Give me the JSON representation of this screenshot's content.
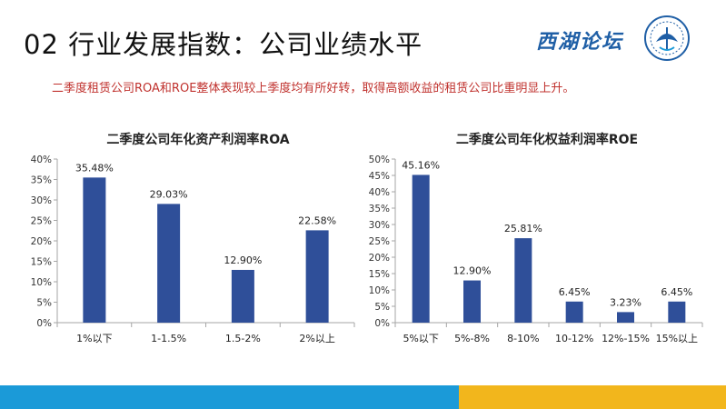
{
  "header": {
    "title": "02 行业发展指数：公司业绩水平",
    "logo_text": "西湖论坛",
    "subtitle": "二季度租赁公司ROA和ROE整体表现较上季度均有所好转，取得高额收益的租赁公司比重明显上升。"
  },
  "colors": {
    "bar": "#2f4f99",
    "footer_blue": "#1b9ad8",
    "footer_yellow": "#f2b61c",
    "subtitle": "#c0322e"
  },
  "chart_data": [
    {
      "type": "bar",
      "title": "二季度公司年化资产利润率ROA",
      "categories": [
        "1%以下",
        "1-1.5%",
        "1.5-2%",
        "2%以上"
      ],
      "values": [
        35.48,
        29.03,
        12.9,
        22.58
      ],
      "value_labels": [
        "35.48%",
        "29.03%",
        "12.90%",
        "22.58%"
      ],
      "ylim": [
        0,
        40
      ],
      "yticks": [
        "0%",
        "5%",
        "10%",
        "15%",
        "20%",
        "25%",
        "30%",
        "35%",
        "40%"
      ],
      "xlabel": "",
      "ylabel": "",
      "grid": false,
      "legend": "none"
    },
    {
      "type": "bar",
      "title": "二季度公司年化权益利润率ROE",
      "categories": [
        "5%以下",
        "5%-8%",
        "8-10%",
        "10-12%",
        "12%-15%",
        "15%以上"
      ],
      "values": [
        45.16,
        12.9,
        25.81,
        6.45,
        3.23,
        6.45
      ],
      "value_labels": [
        "45.16%",
        "12.90%",
        "25.81%",
        "6.45%",
        "3.23%",
        "6.45%"
      ],
      "ylim": [
        0,
        50
      ],
      "yticks": [
        "0%",
        "5%",
        "10%",
        "15%",
        "20%",
        "25%",
        "30%",
        "35%",
        "40%",
        "45%",
        "50%"
      ],
      "xlabel": "",
      "ylabel": "",
      "grid": false,
      "legend": "none"
    }
  ]
}
